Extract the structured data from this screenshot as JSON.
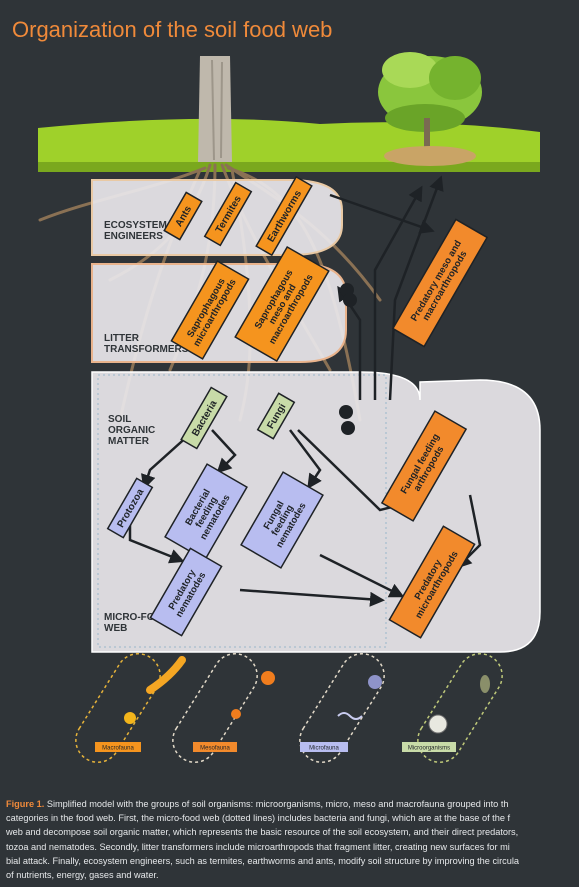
{
  "title": "Organization of the soil food web",
  "zones": {
    "engineers": "ECOSYSTEM\nENGINEERS",
    "litter": "LITTER\nTRANSFORMERS",
    "som": "SOIL\nORGANIC\nMATTER",
    "microweb": "MICRO-FOOD\nWEB"
  },
  "groups": {
    "ants": "Ants",
    "termites": "Termites",
    "earthworms": "Earthworms",
    "saprophagous_micro": "Saprophagous\nmicroarthropods",
    "saprophagous_meso": "Saprophagous\nmeso and\nmacroarthropods",
    "predatory_meso": "Predatory meso and\nmacroarthropods",
    "bacteria": "Bacteria",
    "fungi": "Fungi",
    "fungal_feeding_arthropods": "Fungal feeding\narthropods",
    "protozoa": "Protozoa",
    "bacterial_feeding_nematodes": "Bacterial\nfeeding\nnematodes",
    "fungal_feeding_nematodes": "Fungal\nfeeding\nnematodes",
    "predatory_nematodes": "Predatory\nnematodes",
    "predatory_microarthropods": "Predatory\nmicroarthropods"
  },
  "legend": [
    {
      "label": "Macrofauna",
      "color": "#f5941e"
    },
    {
      "label": "Mesofauna",
      "color": "#f28a2c"
    },
    {
      "label": "Microfauna",
      "color": "#b8bdf0"
    },
    {
      "label": "Microorganisms",
      "color": "#c8dba8"
    }
  ],
  "colors": {
    "macrofauna": "#f5941e",
    "mesofauna": "#f28a2c",
    "microfauna": "#b8bdf0",
    "microorganisms": "#c8dba8",
    "title": "#f08a3a",
    "background": "#2f3438"
  },
  "caption": {
    "label": "Figure 1.",
    "line1": " Simplified model with the groups of soil organisms: microorganisms, micro, meso and macrofauna grouped into th",
    "line2": "categories in the food web. First, the micro-food web (dotted lines) includes bacteria and fungi, which are at the base of the f",
    "line3": "web and decompose soil organic matter, which represents the basic resource of the soil ecosystem, and their direct predators,",
    "line4": "tozoa and nematodes. Secondly, litter transformers include microarthropods that fragment litter, creating new surfaces for mi",
    "line5": "bial attack. Finally, ecosystem engineers, such as termites, earthworms and ants, modify soil structure by improving the circula",
    "line6": "of nutrients, energy, gases and water."
  }
}
